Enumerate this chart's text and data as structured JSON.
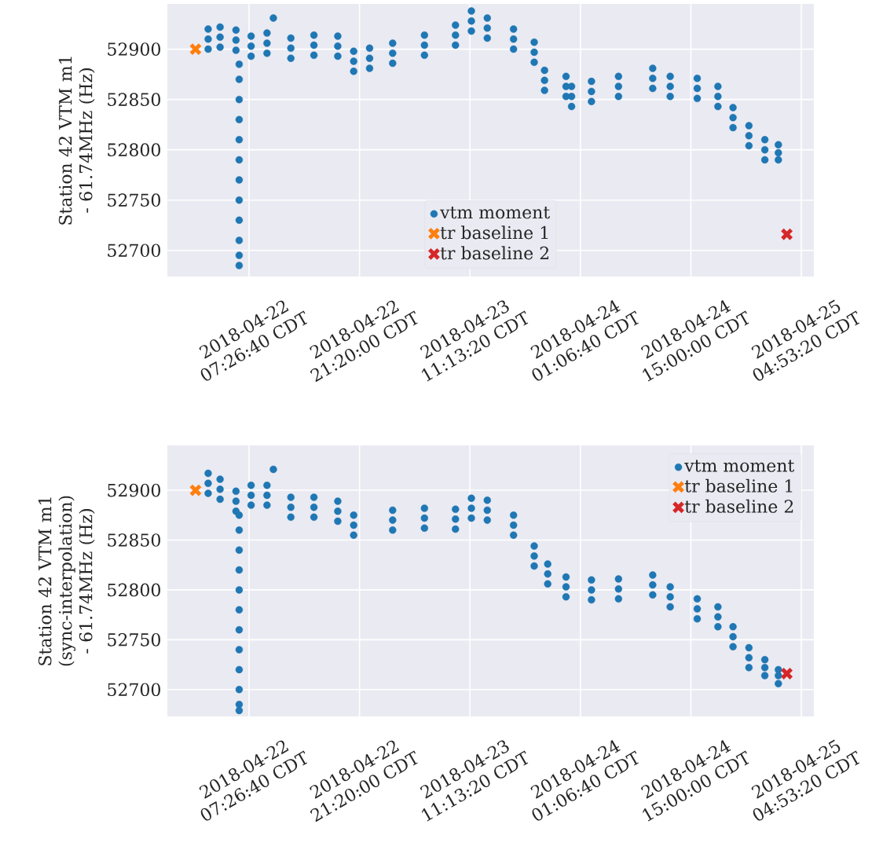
{
  "chart_data": [
    {
      "type": "scatter",
      "ylabel": "Station 42 VTM m1 - 61.74MHz (Hz)",
      "grid": true,
      "legend": "bottom",
      "xlim": [
        "2018-04-21T21:10",
        "2018-04-25T06:28"
      ],
      "ylim": [
        52674,
        52945
      ],
      "xticks": [
        {
          "value": "2018-04-22T07:26:40",
          "label": "2018-04-22 07:26:40 CDT"
        },
        {
          "value": "2018-04-22T21:20:00",
          "label": "2018-04-22 21:20:00 CDT"
        },
        {
          "value": "2018-04-23T11:13:20",
          "label": "2018-04-23 11:13:20 CDT"
        },
        {
          "value": "2018-04-24T01:06:40",
          "label": "2018-04-24 01:06:40 CDT"
        },
        {
          "value": "2018-04-24T15:00:00",
          "label": "2018-04-24 15:00:00 CDT"
        },
        {
          "value": "2018-04-25T04:53:20",
          "label": "2018-04-25 04:53:20 CDT"
        }
      ],
      "yticks": [
        52700,
        52750,
        52800,
        52850,
        52900
      ],
      "series": [
        {
          "name": "vtm moment",
          "color": "#1f77b4",
          "marker": "circle",
          "x": [
            "2018-04-22T02:18",
            "2018-04-22T02:18",
            "2018-04-22T02:18",
            "2018-04-22T03:48",
            "2018-04-22T03:48",
            "2018-04-22T03:48",
            "2018-04-22T05:48",
            "2018-04-22T05:48",
            "2018-04-22T05:48",
            "2018-04-22T07:42",
            "2018-04-22T07:42",
            "2018-04-22T07:42",
            "2018-04-22T09:42",
            "2018-04-22T09:42",
            "2018-04-22T09:42",
            "2018-04-22T12:42",
            "2018-04-22T12:42",
            "2018-04-22T12:42",
            "2018-04-22T15:36",
            "2018-04-22T15:36",
            "2018-04-22T15:36",
            "2018-04-22T18:36",
            "2018-04-22T18:36",
            "2018-04-22T18:36",
            "2018-04-22T20:36",
            "2018-04-22T20:36",
            "2018-04-22T20:36",
            "2018-04-22T22:36",
            "2018-04-22T22:36",
            "2018-04-22T22:36",
            "2018-04-23T01:30",
            "2018-04-23T01:30",
            "2018-04-23T01:30",
            "2018-04-23T05:30",
            "2018-04-23T05:30",
            "2018-04-23T05:30",
            "2018-04-23T09:24",
            "2018-04-23T09:24",
            "2018-04-23T09:24",
            "2018-04-23T11:24",
            "2018-04-23T11:24",
            "2018-04-23T11:24",
            "2018-04-23T13:24",
            "2018-04-23T13:24",
            "2018-04-23T13:24",
            "2018-04-23T16:42",
            "2018-04-23T16:42",
            "2018-04-23T16:42",
            "2018-04-23T19:18",
            "2018-04-23T19:18",
            "2018-04-23T19:18",
            "2018-04-23T20:36",
            "2018-04-23T20:36",
            "2018-04-23T20:36",
            "2018-04-23T23:18",
            "2018-04-23T23:18",
            "2018-04-23T23:18",
            "2018-04-24T00:00",
            "2018-04-24T00:00",
            "2018-04-24T00:00",
            "2018-04-24T02:30",
            "2018-04-24T02:30",
            "2018-04-24T02:30",
            "2018-04-24T05:54",
            "2018-04-24T05:54",
            "2018-04-24T05:54",
            "2018-04-24T10:12",
            "2018-04-24T10:12",
            "2018-04-24T10:12",
            "2018-04-24T12:24",
            "2018-04-24T12:24",
            "2018-04-24T12:24",
            "2018-04-24T15:48",
            "2018-04-24T15:48",
            "2018-04-24T15:48",
            "2018-04-24T18:24",
            "2018-04-24T18:24",
            "2018-04-24T18:24",
            "2018-04-24T20:18",
            "2018-04-24T20:18",
            "2018-04-24T20:18",
            "2018-04-24T22:18",
            "2018-04-24T22:18",
            "2018-04-24T22:18",
            "2018-04-25T00:18",
            "2018-04-25T00:18",
            "2018-04-25T00:18",
            "2018-04-25T02:00",
            "2018-04-25T02:00",
            "2018-04-25T02:00",
            "2018-04-22T06:12",
            "2018-04-22T06:12",
            "2018-04-22T06:12",
            "2018-04-22T06:12",
            "2018-04-22T06:12",
            "2018-04-22T06:12",
            "2018-04-22T06:12",
            "2018-04-22T06:12",
            "2018-04-22T06:12",
            "2018-04-22T06:12",
            "2018-04-22T06:12",
            "2018-04-22T06:12",
            "2018-04-22T10:30"
          ],
          "values": [
            52910,
            52920,
            52900,
            52912,
            52922,
            52902,
            52909,
            52919,
            52899,
            52903,
            52913,
            52893,
            52906,
            52916,
            52896,
            52901,
            52911,
            52891,
            52904,
            52914,
            52894,
            52903,
            52913,
            52893,
            52888,
            52898,
            52878,
            52891,
            52901,
            52881,
            52896,
            52906,
            52886,
            52904,
            52914,
            52894,
            52914,
            52924,
            52904,
            52928,
            52938,
            52918,
            52921,
            52931,
            52911,
            52910,
            52920,
            52900,
            52897,
            52907,
            52887,
            52869,
            52879,
            52859,
            52863,
            52873,
            52853,
            52853,
            52863,
            52843,
            52858,
            52868,
            52848,
            52863,
            52873,
            52853,
            52871,
            52881,
            52861,
            52863,
            52873,
            52853,
            52861,
            52871,
            52851,
            52853,
            52863,
            52843,
            52832,
            52842,
            52822,
            52814,
            52824,
            52804,
            52800,
            52810,
            52790,
            52797,
            52805,
            52790,
            52885,
            52870,
            52850,
            52830,
            52810,
            52790,
            52770,
            52750,
            52730,
            52710,
            52695,
            52685,
            52931
          ]
        },
        {
          "name": "tr baseline 1",
          "color": "#ff7f0e",
          "marker": "cross",
          "x": [
            "2018-04-22T00:43"
          ],
          "values": [
            52900
          ]
        },
        {
          "name": "tr baseline 2",
          "color": "#d62728",
          "marker": "cross",
          "x": [
            "2018-04-25T03:04"
          ],
          "values": [
            52716
          ]
        }
      ]
    },
    {
      "type": "scatter",
      "ylabel": "Station 42 VTM m1 (sync-interpolation) - 61.74MHz (Hz)",
      "grid": true,
      "legend": "top right",
      "xlim": [
        "2018-04-21T21:10",
        "2018-04-25T06:28"
      ],
      "ylim": [
        52673,
        52945
      ],
      "xticks": [
        {
          "value": "2018-04-22T07:26:40",
          "label": "2018-04-22 07:26:40 CDT"
        },
        {
          "value": "2018-04-22T21:20:00",
          "label": "2018-04-22 21:20:00 CDT"
        },
        {
          "value": "2018-04-23T11:13:20",
          "label": "2018-04-23 11:13:20 CDT"
        },
        {
          "value": "2018-04-24T01:06:40",
          "label": "2018-04-24 01:06:40 CDT"
        },
        {
          "value": "2018-04-24T15:00:00",
          "label": "2018-04-24 15:00:00 CDT"
        },
        {
          "value": "2018-04-25T04:53:20",
          "label": "2018-04-25 04:53:20 CDT"
        }
      ],
      "yticks": [
        52700,
        52750,
        52800,
        52850,
        52900
      ],
      "series": [
        {
          "name": "vtm moment",
          "color": "#1f77b4",
          "marker": "circle",
          "x": [
            "2018-04-22T02:18",
            "2018-04-22T02:18",
            "2018-04-22T02:18",
            "2018-04-22T03:48",
            "2018-04-22T03:48",
            "2018-04-22T03:48",
            "2018-04-22T05:48",
            "2018-04-22T05:48",
            "2018-04-22T05:48",
            "2018-04-22T07:42",
            "2018-04-22T07:42",
            "2018-04-22T07:42",
            "2018-04-22T09:42",
            "2018-04-22T09:42",
            "2018-04-22T09:42",
            "2018-04-22T12:42",
            "2018-04-22T12:42",
            "2018-04-22T12:42",
            "2018-04-22T15:36",
            "2018-04-22T15:36",
            "2018-04-22T15:36",
            "2018-04-22T18:36",
            "2018-04-22T18:36",
            "2018-04-22T18:36",
            "2018-04-22T20:36",
            "2018-04-22T20:36",
            "2018-04-22T20:36",
            "2018-04-23T01:30",
            "2018-04-23T01:30",
            "2018-04-23T01:30",
            "2018-04-23T05:30",
            "2018-04-23T05:30",
            "2018-04-23T05:30",
            "2018-04-23T09:24",
            "2018-04-23T09:24",
            "2018-04-23T09:24",
            "2018-04-23T11:24",
            "2018-04-23T11:24",
            "2018-04-23T11:24",
            "2018-04-23T13:24",
            "2018-04-23T13:24",
            "2018-04-23T13:24",
            "2018-04-23T16:42",
            "2018-04-23T16:42",
            "2018-04-23T16:42",
            "2018-04-23T19:18",
            "2018-04-23T19:18",
            "2018-04-23T19:18",
            "2018-04-23T21:00",
            "2018-04-23T21:00",
            "2018-04-23T21:00",
            "2018-04-23T23:18",
            "2018-04-23T23:18",
            "2018-04-23T23:18",
            "2018-04-24T02:30",
            "2018-04-24T02:30",
            "2018-04-24T02:30",
            "2018-04-24T05:54",
            "2018-04-24T05:54",
            "2018-04-24T05:54",
            "2018-04-24T10:12",
            "2018-04-24T10:12",
            "2018-04-24T10:12",
            "2018-04-24T12:24",
            "2018-04-24T12:24",
            "2018-04-24T12:24",
            "2018-04-24T15:48",
            "2018-04-24T15:48",
            "2018-04-24T15:48",
            "2018-04-24T18:24",
            "2018-04-24T18:24",
            "2018-04-24T18:24",
            "2018-04-24T20:18",
            "2018-04-24T20:18",
            "2018-04-24T20:18",
            "2018-04-24T22:18",
            "2018-04-24T22:18",
            "2018-04-24T22:18",
            "2018-04-25T00:18",
            "2018-04-25T00:18",
            "2018-04-25T00:18",
            "2018-04-25T02:00",
            "2018-04-25T02:00",
            "2018-04-25T02:00",
            "2018-04-22T06:12",
            "2018-04-22T06:12",
            "2018-04-22T06:12",
            "2018-04-22T06:12",
            "2018-04-22T06:12",
            "2018-04-22T06:12",
            "2018-04-22T06:12",
            "2018-04-22T06:12",
            "2018-04-22T06:12",
            "2018-04-22T06:12",
            "2018-04-22T06:12",
            "2018-04-22T06:12",
            "2018-04-22T10:30"
          ],
          "values": [
            52907,
            52917,
            52897,
            52901,
            52911,
            52891,
            52889,
            52899,
            52879,
            52895,
            52905,
            52885,
            52895,
            52905,
            52885,
            52883,
            52893,
            52873,
            52883,
            52893,
            52873,
            52879,
            52889,
            52869,
            52865,
            52875,
            52855,
            52870,
            52880,
            52860,
            52872,
            52882,
            52862,
            52871,
            52881,
            52861,
            52882,
            52892,
            52872,
            52880,
            52890,
            52870,
            52865,
            52875,
            52855,
            52834,
            52844,
            52824,
            52816,
            52826,
            52806,
            52803,
            52813,
            52793,
            52800,
            52810,
            52790,
            52801,
            52811,
            52791,
            52805,
            52815,
            52795,
            52793,
            52803,
            52783,
            52781,
            52791,
            52771,
            52773,
            52783,
            52763,
            52753,
            52763,
            52743,
            52732,
            52742,
            52722,
            52722,
            52730,
            52714,
            52714,
            52720,
            52706,
            52875,
            52860,
            52840,
            52820,
            52800,
            52780,
            52760,
            52740,
            52720,
            52700,
            52685,
            52679,
            52921
          ]
        },
        {
          "name": "tr baseline 1",
          "color": "#ff7f0e",
          "marker": "cross",
          "x": [
            "2018-04-22T00:43"
          ],
          "values": [
            52900
          ]
        },
        {
          "name": "tr baseline 2",
          "color": "#d62728",
          "marker": "cross",
          "x": [
            "2018-04-25T03:04"
          ],
          "values": [
            52716
          ]
        }
      ]
    }
  ]
}
